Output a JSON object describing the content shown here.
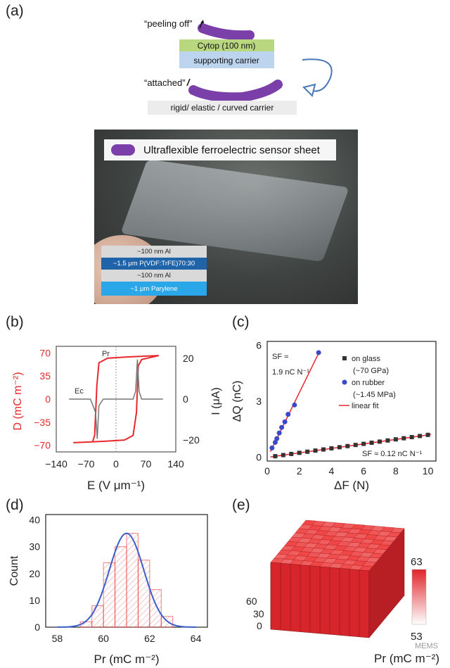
{
  "panels": {
    "a": "(a)",
    "b": "(b)",
    "c": "(c)",
    "d": "(d)",
    "e": "(e)"
  },
  "a_diagram": {
    "peeling_label": "“peeling off”",
    "attached_label": "“attached”",
    "cytop_label": "Cytop (100 nm)",
    "support_label": "supporting carrier",
    "carrier_label": "rigid/ elastic / curved carrier",
    "colors": {
      "cytop": "#b9d77f",
      "support": "#bcd4ee",
      "carrier": "#ececec",
      "sheet": "#7a3fa8"
    }
  },
  "photo": {
    "legend": "Ultraflexible ferroelectric sensor sheet",
    "layers": [
      "~100 nm Al",
      "~1.5 μm P(VDF:TrFE)70:30",
      "~100 nm Al",
      "~1 μm Parylene"
    ]
  },
  "chart_data": [
    {
      "id": "b",
      "type": "line",
      "xlabel": "E (V μm⁻¹)",
      "ylabel_left": "D (mC m⁻²)",
      "ylabel_right": "I (μA)",
      "xticks": [
        "−140",
        "−70",
        "0",
        "70",
        "140"
      ],
      "yticks_left": [
        "70",
        "35",
        "0",
        "−35",
        "−70"
      ],
      "yticks_right": [
        "20",
        "0",
        "−20"
      ],
      "annotations": [
        "Pr",
        "Ec"
      ],
      "xlim": [
        -140,
        140
      ],
      "ylim": [
        -80,
        80
      ],
      "series": [
        {
          "color": "#e8282d",
          "upper": [
            [
              -55,
              -65
            ],
            [
              -50,
              -55
            ],
            [
              -45,
              20
            ],
            [
              -40,
              55
            ],
            [
              -20,
              62
            ],
            [
              30,
              64
            ],
            [
              100,
              66
            ]
          ],
          "lower": [
            [
              -100,
              -66
            ],
            [
              -30,
              -64
            ],
            [
              20,
              -62
            ],
            [
              40,
              -55
            ],
            [
              48,
              -20
            ],
            [
              52,
              50
            ],
            [
              60,
              60
            ],
            [
              100,
              66
            ]
          ]
        },
        {
          "color": "#777777",
          "current": [
            [
              -110,
              0
            ],
            [
              -60,
              0
            ],
            [
              -48,
              -20
            ],
            [
              -44,
              -60
            ],
            [
              -40,
              -10
            ],
            [
              -30,
              0
            ],
            [
              40,
              0
            ],
            [
              46,
              12
            ],
            [
              50,
              60
            ],
            [
              54,
              12
            ],
            [
              60,
              0
            ],
            [
              110,
              0
            ]
          ]
        }
      ]
    },
    {
      "id": "c",
      "type": "scatter",
      "xlabel": "ΔF (N)",
      "ylabel": "ΔQ (nC)",
      "xticks": [
        "0",
        "2",
        "4",
        "6",
        "8",
        "10"
      ],
      "yticks": [
        "0",
        "3",
        "6"
      ],
      "xlim": [
        0,
        10.5
      ],
      "ylim": [
        -0.2,
        6.2
      ],
      "annotation_glass": "SF ≈ 0.12 nC N⁻¹",
      "annotation_rubber_1": "SF ≈",
      "annotation_rubber_2": "1.9 nC N⁻¹",
      "legend": [
        "on glass",
        "(~70 GPa)",
        "on rubber",
        "(~1.45 MPa)",
        "linear fit"
      ],
      "series": [
        {
          "name": "on glass (~70 GPa)",
          "color": "#333333",
          "x": [
            0.5,
            1,
            1.5,
            2,
            2.5,
            3,
            3.5,
            4,
            4.5,
            5,
            5.5,
            6,
            6.5,
            7,
            7.5,
            8,
            8.5,
            9,
            9.5,
            10
          ],
          "y": [
            0.06,
            0.12,
            0.18,
            0.24,
            0.3,
            0.36,
            0.42,
            0.48,
            0.54,
            0.6,
            0.66,
            0.72,
            0.78,
            0.84,
            0.9,
            0.96,
            1.02,
            1.08,
            1.14,
            1.2
          ]
        },
        {
          "name": "on rubber (~1.45 MPa)",
          "color": "#3b48c8",
          "x": [
            0.3,
            0.5,
            0.6,
            0.75,
            0.9,
            1.1,
            1.3,
            1.7,
            3.2
          ],
          "y": [
            0.5,
            0.8,
            1.0,
            1.3,
            1.6,
            1.9,
            2.3,
            2.8,
            5.6
          ]
        }
      ]
    },
    {
      "id": "d",
      "type": "bar",
      "xlabel": "Pr (mC m⁻²)",
      "ylabel": "Count",
      "xticks": [
        "58",
        "60",
        "62",
        "64"
      ],
      "yticks": [
        "0",
        "10",
        "20",
        "30",
        "40"
      ],
      "xlim": [
        57.5,
        64.5
      ],
      "ylim": [
        0,
        42
      ],
      "bins": [
        [
          59,
          59.5,
          2
        ],
        [
          59.5,
          60,
          8
        ],
        [
          60,
          60.5,
          24
        ],
        [
          60.5,
          61,
          30
        ],
        [
          61,
          61.5,
          35
        ],
        [
          61.5,
          62,
          25
        ],
        [
          62,
          62.5,
          14
        ],
        [
          62.5,
          63,
          4
        ]
      ],
      "fit_color": "#3a5fcd"
    },
    {
      "id": "e",
      "type": "heatmap",
      "axis_ticks": [
        "60",
        "30",
        "0"
      ],
      "colorbar_max": "63",
      "colorbar_min": "53",
      "colorbar_label": "Pr (mC m⁻²)"
    }
  ],
  "watermark": "MEMS"
}
